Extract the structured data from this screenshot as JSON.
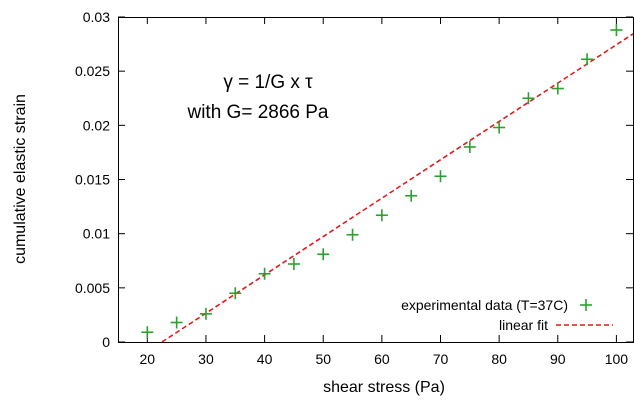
{
  "chart_data": {
    "type": "scatter",
    "xlabel": "shear stress (Pa)",
    "ylabel": "cumulative elastic strain",
    "xlim": [
      15,
      103
    ],
    "ylim": [
      0,
      0.03
    ],
    "xticks": [
      20,
      30,
      40,
      50,
      60,
      70,
      80,
      90,
      100
    ],
    "yticks": [
      0,
      0.005,
      0.01,
      0.015,
      0.02,
      0.025,
      0.03
    ],
    "xtick_labels": [
      "20",
      "30",
      "40",
      "50",
      "60",
      "70",
      "80",
      "90",
      "100"
    ],
    "ytick_labels": [
      "0",
      "0.005",
      "0.01",
      "0.015",
      "0.02",
      "0.025",
      "0.03"
    ],
    "annotations": [
      "γ = 1/G x τ",
      "with G= 2866 Pa"
    ],
    "legend_position": "bottom-right",
    "grid": false,
    "series": [
      {
        "name": "experimental data (T=37C)",
        "kind": "points",
        "marker": "plus",
        "color": "#2ca02c",
        "x": [
          20,
          25,
          30,
          35,
          40,
          45,
          50,
          55,
          60,
          65,
          70,
          75,
          80,
          85,
          90,
          95,
          100
        ],
        "y": [
          0.0009,
          0.0018,
          0.0026,
          0.0045,
          0.0063,
          0.0072,
          0.0081,
          0.0099,
          0.0117,
          0.0135,
          0.0153,
          0.018,
          0.0198,
          0.0225,
          0.0234,
          0.0261,
          0.0288
        ]
      },
      {
        "name": "linear fit",
        "kind": "line",
        "style": "dashed",
        "color": "#e41a1c",
        "x": [
          22.5,
          103
        ],
        "y": [
          0,
          0.0285
        ]
      }
    ]
  }
}
